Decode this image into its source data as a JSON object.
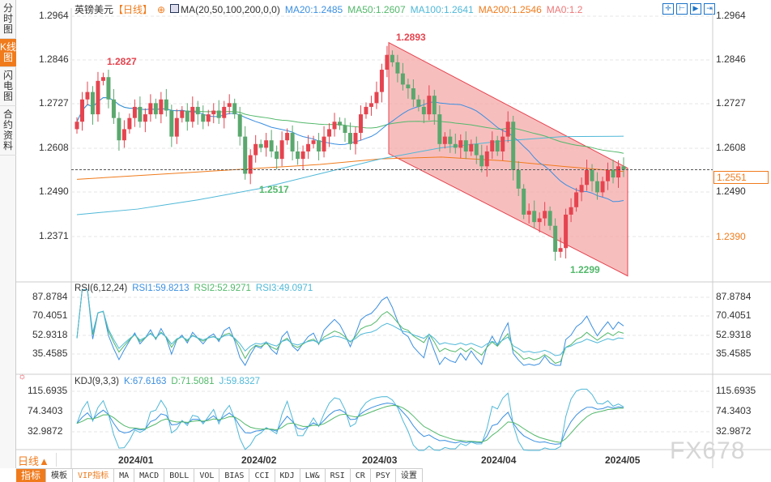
{
  "sidebar": {
    "tabs": [
      {
        "label": "分时图",
        "active": false
      },
      {
        "label": "K线图",
        "active": true
      },
      {
        "label": "闪电图",
        "active": false
      },
      {
        "label": "合约资料",
        "active": false
      }
    ]
  },
  "header": {
    "symbol": "英镑美元",
    "period": "【日线】",
    "indicator": "MA(20,50,100,200,0,0)",
    "ma20": "MA20:1.2485",
    "ma50": "MA50:1.2607",
    "ma100": "MA100:1.2641",
    "ma200": "MA200:1.2546",
    "ma0": "MA0:1.2"
  },
  "colors": {
    "up": "#e5444f",
    "down": "#5aa86e",
    "ma20": "#3b8fe0",
    "ma50": "#52b86a",
    "ma100": "#4fb8d8",
    "ma200": "#f07b1c",
    "channel": "#f4a3a3",
    "accent": "#f07b1c"
  },
  "toolbar": {
    "icons": [
      "crosshair-icon",
      "zoom-fit-icon",
      "scroll-right-icon",
      "go-latest-icon"
    ]
  },
  "price_axis": {
    "ticks": [
      "1.2964",
      "1.2846",
      "1.2727",
      "1.2608",
      "1.2490",
      "1.2371"
    ],
    "current": "1.2551",
    "marker": "1.2390"
  },
  "annotations": {
    "high1": "1.2827",
    "low1": "1.2517",
    "high2": "1.2893",
    "low2": "1.2299"
  },
  "rsi": {
    "title": "RSI(6,12,24)",
    "rsi1": "RSI1:59.8213",
    "rsi2": "RSI2:52.9271",
    "rsi3": "RSI3:49.0971",
    "ticks": [
      "87.8784",
      "70.4051",
      "52.9318",
      "35.4585"
    ]
  },
  "kdj": {
    "title": "KDJ(9,3,3)",
    "k": "K:67.6163",
    "d": "D:71.5081",
    "j": "J:59.8327",
    "ticks": [
      "115.6935",
      "74.3403",
      "32.9872"
    ]
  },
  "dates": [
    "2024/01",
    "2024/02",
    "2024/03",
    "2024/04",
    "2024/05"
  ],
  "period_selector": "日线▲",
  "bottom_tabs": [
    "指标",
    "模板",
    "VIP指标",
    "MA",
    "MACD",
    "BOLL",
    "VOL",
    "BIAS",
    "CCI",
    "KDJ",
    "LW&",
    "RSI",
    "CR",
    "PSY",
    "设置"
  ],
  "watermark": "FX678",
  "chart_data": {
    "type": "candlestick",
    "closes": [
      1.268,
      1.274,
      1.276,
      1.27,
      1.279,
      1.28,
      1.274,
      1.269,
      1.263,
      1.266,
      1.269,
      1.272,
      1.268,
      1.27,
      1.273,
      1.27,
      1.274,
      1.271,
      1.264,
      1.269,
      1.271,
      1.268,
      1.272,
      1.27,
      1.268,
      1.27,
      1.271,
      1.269,
      1.272,
      1.273,
      1.27,
      1.264,
      1.254,
      1.259,
      1.262,
      1.261,
      1.263,
      1.26,
      1.258,
      1.263,
      1.265,
      1.26,
      1.258,
      1.26,
      1.262,
      1.263,
      1.26,
      1.264,
      1.266,
      1.268,
      1.267,
      1.265,
      1.262,
      1.265,
      1.27,
      1.272,
      1.273,
      1.276,
      1.282,
      1.286,
      1.284,
      1.281,
      1.278,
      1.277,
      1.274,
      1.272,
      1.27,
      1.275,
      1.27,
      1.262,
      1.264,
      1.262,
      1.261,
      1.263,
      1.26,
      1.262,
      1.259,
      1.256,
      1.26,
      1.263,
      1.26,
      1.264,
      1.268,
      1.255,
      1.25,
      1.243,
      1.244,
      1.241,
      1.242,
      1.244,
      1.24,
      1.233,
      1.234,
      1.243,
      1.245,
      1.249,
      1.251,
      1.255,
      1.252,
      1.249,
      1.252,
      1.255,
      1.253,
      1.256,
      1.2551
    ],
    "ma100": [
      1.243,
      1.2445,
      1.247,
      1.25,
      1.254,
      1.258,
      1.261,
      1.2628,
      1.264,
      1.2641
    ],
    "ma200": [
      1.2525,
      1.2535,
      1.2545,
      1.2555,
      1.2565,
      1.258,
      1.2585,
      1.2575,
      1.256,
      1.2546
    ],
    "channel": {
      "upper": [
        1.2893,
        1.2555
      ],
      "lower": [
        1.2594,
        1.2265
      ]
    },
    "ylim": [
      1.2335,
      1.2985
    ]
  }
}
